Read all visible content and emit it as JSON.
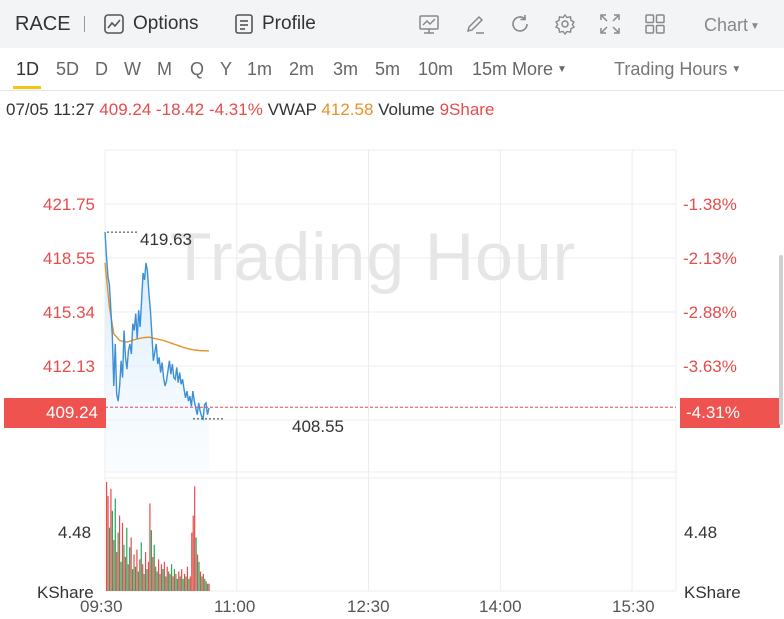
{
  "header": {
    "ticker": "RACE",
    "options_label": "Options",
    "profile_label": "Profile",
    "chart_label": "Chart"
  },
  "periods": [
    "1D",
    "5D",
    "D",
    "W",
    "M",
    "Q",
    "Y",
    "1m",
    "2m",
    "3m",
    "5m",
    "10m",
    "15m"
  ],
  "active_period": "1D",
  "more_label": "More",
  "trading_hours_label": "Trading Hours",
  "info": {
    "datetime": "07/05 11:27",
    "price": "409.24",
    "change": "-18.42",
    "change_pct": "-4.31%",
    "vwap_label": "VWAP",
    "vwap": "412.58",
    "volume_label": "Volume",
    "volume": "9Share"
  },
  "watermark": "Trading Hour",
  "y_labels_left": [
    "421.75",
    "418.55",
    "415.34",
    "412.13"
  ],
  "y_labels_right": [
    "-1.38%",
    "-2.13%",
    "-2.88%",
    "-3.63%"
  ],
  "current_price_badge": "409.24",
  "current_pct_badge": "-4.31%",
  "high_label": "419.63",
  "low_label": "408.55",
  "volume_axis": {
    "value_left": "4.48",
    "unit_left": "KShare",
    "value_right": "4.48",
    "unit_right": "KShare"
  },
  "colors": {
    "up": "#e84b4b",
    "down": "#26a65b",
    "price_line": "#3d8fd6",
    "vwap_line": "#e8922a",
    "accent": "#f5c518"
  },
  "chart_data": {
    "type": "line",
    "x_labels": [
      "09:30",
      "11:00",
      "12:30",
      "14:00",
      "15:30"
    ],
    "price_range": [
      405.4,
      424.5
    ],
    "price_series": [
      [
        "09:30",
        419.63
      ],
      [
        "09:31",
        418.2
      ],
      [
        "09:32",
        417.0
      ],
      [
        "09:33",
        416.5
      ],
      [
        "09:34",
        415.0
      ],
      [
        "09:35",
        413.5
      ],
      [
        "09:36",
        410.5
      ],
      [
        "09:37",
        413.0
      ],
      [
        "09:38",
        410.0
      ],
      [
        "09:39",
        409.6
      ],
      [
        "09:40",
        410.5
      ],
      [
        "09:41",
        412.0
      ],
      [
        "09:42",
        411.0
      ],
      [
        "09:43",
        413.8
      ],
      [
        "09:44",
        412.2
      ],
      [
        "09:45",
        411.5
      ],
      [
        "09:46",
        412.6
      ],
      [
        "09:47",
        413.0
      ],
      [
        "09:48",
        412.4
      ],
      [
        "09:49",
        414.2
      ],
      [
        "09:50",
        413.8
      ],
      [
        "09:51",
        414.8
      ],
      [
        "09:52",
        413.3
      ],
      [
        "09:53",
        415.0
      ],
      [
        "09:54",
        414.0
      ],
      [
        "09:55",
        415.6
      ],
      [
        "09:56",
        417.2
      ],
      [
        "09:57",
        416.8
      ],
      [
        "09:58",
        417.8
      ],
      [
        "09:59",
        417.3
      ],
      [
        "10:00",
        416.0
      ],
      [
        "10:01",
        415.0
      ],
      [
        "10:02",
        413.6
      ],
      [
        "10:03",
        412.0
      ],
      [
        "10:04",
        412.5
      ],
      [
        "10:05",
        413.0
      ],
      [
        "10:06",
        411.8
      ],
      [
        "10:07",
        412.2
      ],
      [
        "10:08",
        411.3
      ],
      [
        "10:09",
        411.9
      ],
      [
        "10:10",
        411.0
      ],
      [
        "10:11",
        410.5
      ],
      [
        "10:12",
        410.8
      ],
      [
        "10:13",
        411.4
      ],
      [
        "10:14",
        412.0
      ],
      [
        "10:15",
        411.2
      ],
      [
        "10:16",
        411.8
      ],
      [
        "10:17",
        411.0
      ],
      [
        "10:18",
        410.9
      ],
      [
        "10:19",
        411.6
      ],
      [
        "10:20",
        410.7
      ],
      [
        "10:21",
        411.3
      ],
      [
        "10:22",
        410.6
      ],
      [
        "10:23",
        410.9
      ],
      [
        "10:24",
        410.3
      ],
      [
        "10:25",
        409.8
      ],
      [
        "10:26",
        410.2
      ],
      [
        "10:27",
        409.6
      ],
      [
        "10:28",
        409.9
      ],
      [
        "10:29",
        409.3
      ],
      [
        "10:30",
        410.2
      ],
      [
        "10:31",
        409.6
      ],
      [
        "10:32",
        409.2
      ],
      [
        "10:33",
        408.8
      ],
      [
        "10:34",
        409.5
      ],
      [
        "10:35",
        409.0
      ],
      [
        "10:36",
        408.7
      ],
      [
        "10:37",
        408.55
      ],
      [
        "10:38",
        409.4
      ],
      [
        "10:39",
        409.5
      ],
      [
        "10:40",
        408.8
      ],
      [
        "10:41",
        409.2
      ]
    ],
    "vwap_series": [
      [
        "09:30",
        417.8
      ],
      [
        "09:33",
        415.2
      ],
      [
        "09:36",
        413.6
      ],
      [
        "09:40",
        413.2
      ],
      [
        "09:45",
        413.1
      ],
      [
        "09:50",
        413.25
      ],
      [
        "09:55",
        413.35
      ],
      [
        "10:00",
        413.4
      ],
      [
        "10:05",
        413.3
      ],
      [
        "10:10",
        413.2
      ],
      [
        "10:15",
        413.05
      ],
      [
        "10:20",
        412.9
      ],
      [
        "10:25",
        412.75
      ],
      [
        "10:30",
        412.65
      ],
      [
        "10:35",
        412.6
      ],
      [
        "10:41",
        412.58
      ]
    ],
    "volume_bars": [
      [
        4.48,
        1
      ],
      [
        3.9,
        1
      ],
      [
        2.6,
        0
      ],
      [
        4.2,
        1
      ],
      [
        3.3,
        0
      ],
      [
        2.1,
        1
      ],
      [
        3.8,
        0
      ],
      [
        1.6,
        1
      ],
      [
        2.4,
        0
      ],
      [
        3.1,
        1
      ],
      [
        1.2,
        0
      ],
      [
        2.8,
        1
      ],
      [
        1.9,
        0
      ],
      [
        1.4,
        1
      ],
      [
        2.6,
        0
      ],
      [
        1.1,
        1
      ],
      [
        1.8,
        0
      ],
      [
        2.2,
        1
      ],
      [
        0.9,
        0
      ],
      [
        1.5,
        1
      ],
      [
        1.0,
        0
      ],
      [
        1.7,
        1
      ],
      [
        0.8,
        0
      ],
      [
        1.3,
        1
      ],
      [
        2.0,
        0
      ],
      [
        1.1,
        1
      ],
      [
        0.7,
        0
      ],
      [
        1.6,
        1
      ],
      [
        0.9,
        0
      ],
      [
        1.2,
        1
      ],
      [
        3.6,
        1
      ],
      [
        2.5,
        0
      ],
      [
        1.4,
        1
      ],
      [
        1.9,
        0
      ],
      [
        1.0,
        1
      ],
      [
        0.8,
        0
      ],
      [
        1.3,
        1
      ],
      [
        0.7,
        0
      ],
      [
        1.1,
        1
      ],
      [
        0.9,
        0
      ],
      [
        1.2,
        1
      ],
      [
        0.6,
        0
      ],
      [
        1.0,
        1
      ],
      [
        0.8,
        0
      ],
      [
        0.7,
        1
      ],
      [
        1.1,
        0
      ],
      [
        0.6,
        1
      ],
      [
        0.9,
        0
      ],
      [
        0.7,
        1
      ],
      [
        0.5,
        0
      ],
      [
        0.8,
        1
      ],
      [
        0.6,
        0
      ],
      [
        0.9,
        1
      ],
      [
        0.5,
        0
      ],
      [
        0.7,
        1
      ],
      [
        0.6,
        0
      ],
      [
        1.0,
        1
      ],
      [
        0.5,
        0
      ],
      [
        0.6,
        1
      ],
      [
        2.4,
        1
      ],
      [
        3.1,
        1
      ],
      [
        4.3,
        1
      ],
      [
        2.2,
        0
      ],
      [
        1.5,
        1
      ],
      [
        1.2,
        0
      ],
      [
        0.8,
        1
      ],
      [
        0.6,
        0
      ],
      [
        0.7,
        1
      ],
      [
        0.5,
        0
      ],
      [
        0.4,
        1
      ],
      [
        0.3,
        0
      ],
      [
        0.3,
        1
      ]
    ]
  }
}
